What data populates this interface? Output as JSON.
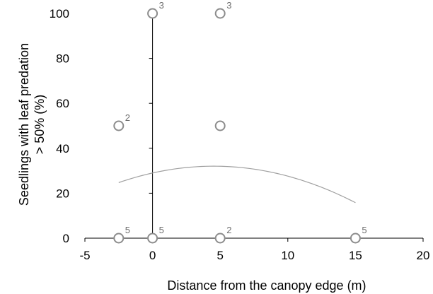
{
  "chart_data": {
    "type": "scatter",
    "title": "",
    "xlabel": "Distance from the canopy edge (m)",
    "ylabel_line1": "Seedlings with leaf predation",
    "ylabel_line2": "> 50% (%)",
    "xlim": [
      -5,
      20
    ],
    "ylim": [
      0,
      100
    ],
    "xticks": [
      -5,
      0,
      5,
      10,
      15,
      20
    ],
    "yticks": [
      0,
      20,
      40,
      60,
      80,
      100
    ],
    "grid": false,
    "legend": "none",
    "colors": {
      "marker": "#8c8c8c",
      "curve": "#a0a0a0",
      "axis": "#000000",
      "label": "#6e6e6e"
    },
    "points": [
      {
        "x": -2.5,
        "y": 0,
        "n": "5"
      },
      {
        "x": 0,
        "y": 0,
        "n": "5"
      },
      {
        "x": 5,
        "y": 0,
        "n": "2"
      },
      {
        "x": 15,
        "y": 0,
        "n": "5"
      },
      {
        "x": -2.5,
        "y": 50,
        "n": "2"
      },
      {
        "x": 5,
        "y": 50,
        "n": ""
      },
      {
        "x": 0,
        "y": 100,
        "n": "3"
      },
      {
        "x": 5,
        "y": 100,
        "n": "3"
      }
    ],
    "fit_curve": {
      "type": "quadratic",
      "x_range": [
        -2.5,
        15
      ],
      "coefficients": {
        "a": -0.148,
        "b": 1.34,
        "c": 29.0
      }
    }
  }
}
